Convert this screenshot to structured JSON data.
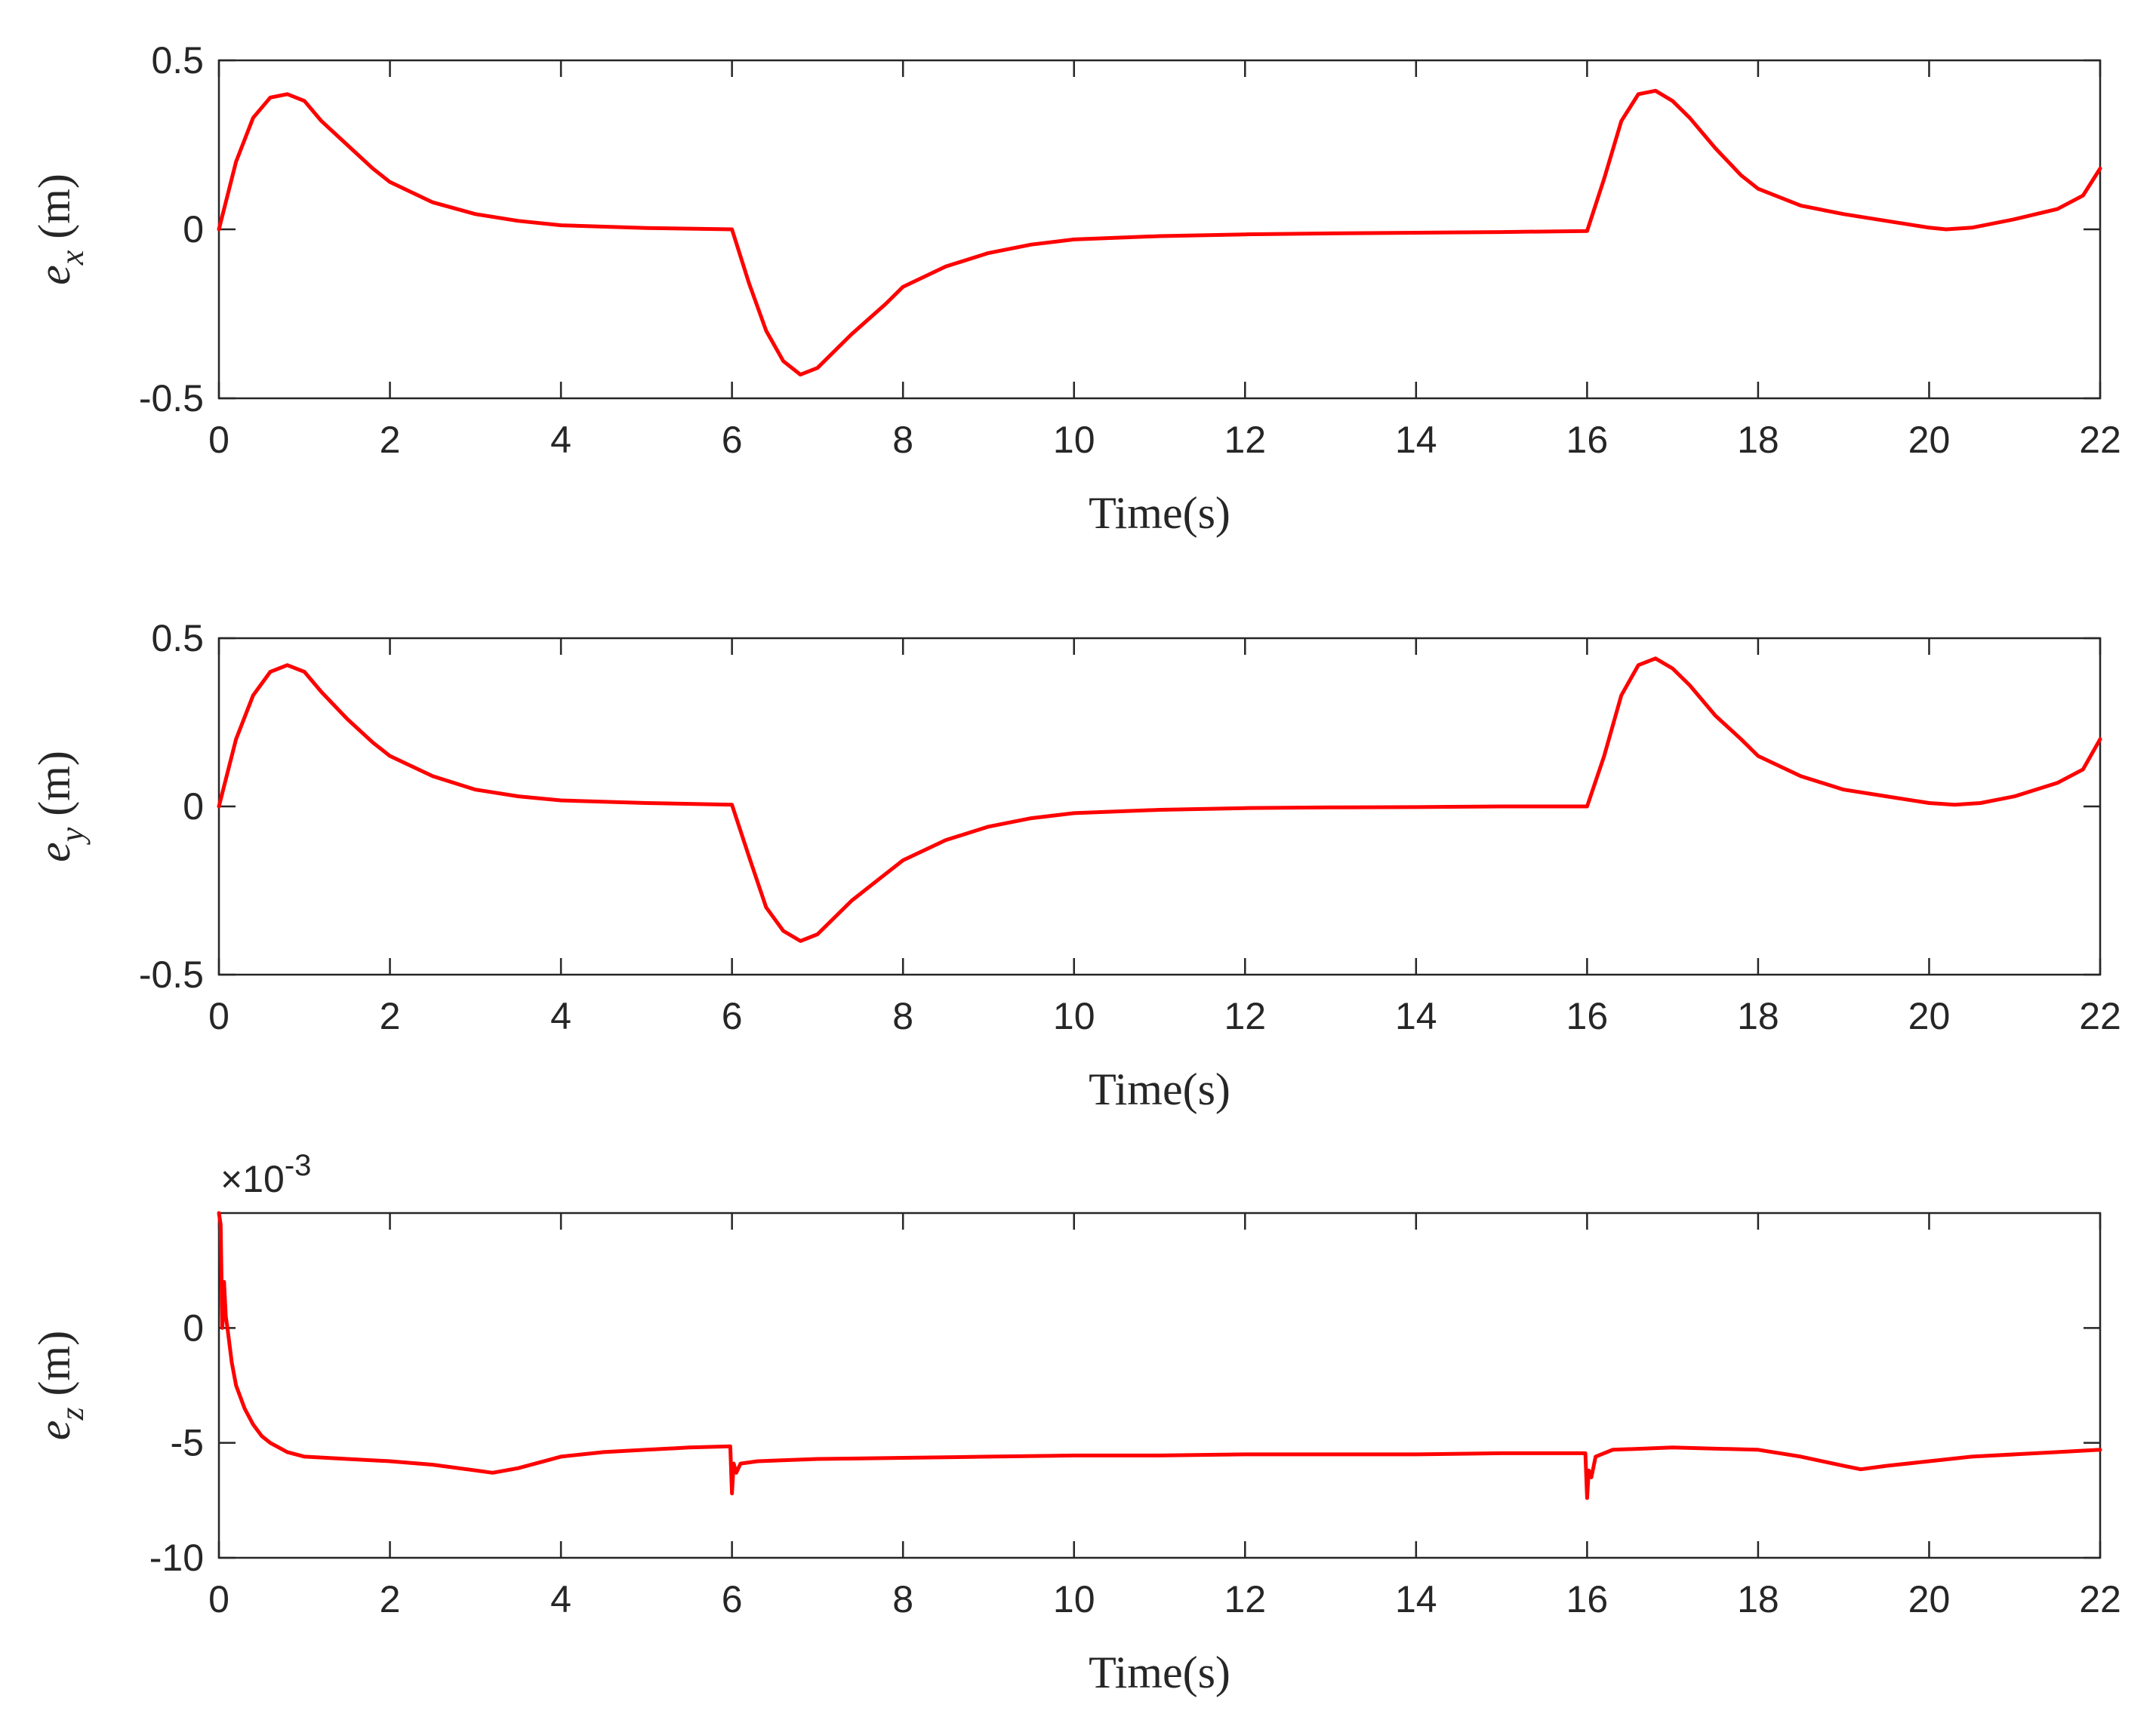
{
  "chart_data": [
    {
      "type": "line",
      "xlabel": "Time(s)",
      "ylabel_var": "e",
      "ylabel_sub": "x",
      "ylabel_unit": " (m)",
      "xlim": [
        0,
        22
      ],
      "ylim": [
        -0.5,
        0.5
      ],
      "xticks": [
        0,
        2,
        4,
        6,
        8,
        10,
        12,
        14,
        16,
        18,
        20,
        22
      ],
      "yticks": [
        -0.5,
        0,
        0.5
      ],
      "ytick_labels": [
        "-0.5",
        "0",
        "0.5"
      ],
      "grid": false,
      "series": [
        {
          "color": "#ff0000",
          "x": [
            0,
            0.2,
            0.4,
            0.6,
            0.8,
            1.0,
            1.2,
            1.5,
            1.8,
            2.0,
            2.5,
            3.0,
            3.5,
            4.0,
            5.0,
            6.0,
            6.2,
            6.4,
            6.6,
            6.8,
            7.0,
            7.4,
            7.8,
            8.0,
            8.5,
            9.0,
            9.5,
            10.0,
            11.0,
            12.0,
            13.0,
            14.0,
            15.0,
            16.0,
            16.2,
            16.4,
            16.6,
            16.8,
            17.0,
            17.2,
            17.5,
            17.8,
            18.0,
            18.5,
            19.0,
            19.5,
            20.0,
            20.2,
            20.5,
            21.0,
            21.5,
            21.8,
            22.0
          ],
          "y": [
            0,
            0.2,
            0.33,
            0.39,
            0.4,
            0.38,
            0.32,
            0.25,
            0.18,
            0.14,
            0.08,
            0.045,
            0.025,
            0.012,
            0.004,
            0.0,
            -0.16,
            -0.3,
            -0.39,
            -0.43,
            -0.41,
            -0.31,
            -0.22,
            -0.17,
            -0.11,
            -0.07,
            -0.045,
            -0.03,
            -0.02,
            -0.015,
            -0.012,
            -0.01,
            -0.008,
            -0.005,
            0.15,
            0.32,
            0.4,
            0.41,
            0.38,
            0.33,
            0.24,
            0.16,
            0.12,
            0.07,
            0.045,
            0.025,
            0.005,
            0.0,
            0.005,
            0.03,
            0.06,
            0.1,
            0.18
          ]
        }
      ]
    },
    {
      "type": "line",
      "xlabel": "Time(s)",
      "ylabel_var": "e",
      "ylabel_sub": "y",
      "ylabel_unit": " (m)",
      "xlim": [
        0,
        22
      ],
      "ylim": [
        -0.5,
        0.5
      ],
      "xticks": [
        0,
        2,
        4,
        6,
        8,
        10,
        12,
        14,
        16,
        18,
        20,
        22
      ],
      "yticks": [
        -0.5,
        0,
        0.5
      ],
      "ytick_labels": [
        "-0.5",
        "0",
        "0.5"
      ],
      "grid": false,
      "series": [
        {
          "color": "#ff0000",
          "x": [
            0,
            0.2,
            0.4,
            0.6,
            0.8,
            1.0,
            1.2,
            1.5,
            1.8,
            2.0,
            2.5,
            3.0,
            3.5,
            4.0,
            5.0,
            6.0,
            6.2,
            6.4,
            6.6,
            6.8,
            7.0,
            7.4,
            7.8,
            8.0,
            8.5,
            9.0,
            9.5,
            10.0,
            11.0,
            12.0,
            13.0,
            14.0,
            15.0,
            16.0,
            16.2,
            16.4,
            16.6,
            16.8,
            17.0,
            17.2,
            17.5,
            17.8,
            18.0,
            18.5,
            19.0,
            19.5,
            20.0,
            20.3,
            20.6,
            21.0,
            21.5,
            21.8,
            22.0
          ],
          "y": [
            0,
            0.2,
            0.33,
            0.4,
            0.42,
            0.4,
            0.34,
            0.26,
            0.19,
            0.15,
            0.09,
            0.05,
            0.03,
            0.018,
            0.01,
            0.005,
            -0.15,
            -0.3,
            -0.37,
            -0.4,
            -0.38,
            -0.28,
            -0.2,
            -0.16,
            -0.1,
            -0.06,
            -0.035,
            -0.02,
            -0.01,
            -0.005,
            -0.003,
            -0.002,
            0.0,
            0.0,
            0.15,
            0.33,
            0.42,
            0.44,
            0.41,
            0.36,
            0.27,
            0.2,
            0.15,
            0.09,
            0.05,
            0.03,
            0.01,
            0.005,
            0.01,
            0.03,
            0.07,
            0.11,
            0.2
          ]
        }
      ]
    },
    {
      "type": "line",
      "xlabel": "Time(s)",
      "ylabel_var": "e",
      "ylabel_sub": "z",
      "ylabel_unit": " (m)",
      "exponent": "×10",
      "exponent_power": "-3",
      "xlim": [
        0,
        22
      ],
      "ylim": [
        -10,
        5
      ],
      "xticks": [
        0,
        2,
        4,
        6,
        8,
        10,
        12,
        14,
        16,
        18,
        20,
        22
      ],
      "yticks": [
        -10,
        -5,
        0
      ],
      "ytick_labels": [
        "-10",
        "-5",
        "0"
      ],
      "grid": false,
      "series": [
        {
          "color": "#ff0000",
          "x": [
            0,
            0.02,
            0.04,
            0.06,
            0.08,
            0.1,
            0.15,
            0.2,
            0.3,
            0.4,
            0.5,
            0.6,
            0.8,
            1.0,
            1.5,
            2.0,
            2.5,
            3.0,
            3.2,
            3.5,
            4.0,
            4.5,
            5.0,
            5.5,
            5.98,
            6.0,
            6.02,
            6.05,
            6.1,
            6.3,
            7.0,
            8.0,
            9.0,
            10.0,
            11.0,
            12.0,
            13.0,
            14.0,
            15.0,
            15.98,
            16.0,
            16.02,
            16.05,
            16.1,
            16.3,
            17.0,
            18.0,
            18.5,
            19.0,
            19.2,
            19.5,
            20.0,
            20.5,
            21.0,
            21.5,
            22.0
          ],
          "y": [
            5,
            4.5,
            0,
            2,
            0.5,
            0,
            -1.5,
            -2.5,
            -3.5,
            -4.2,
            -4.7,
            -5.0,
            -5.4,
            -5.6,
            -5.7,
            -5.8,
            -5.95,
            -6.2,
            -6.3,
            -6.1,
            -5.6,
            -5.4,
            -5.3,
            -5.2,
            -5.15,
            -7.2,
            -5.9,
            -6.3,
            -5.9,
            -5.8,
            -5.7,
            -5.65,
            -5.6,
            -5.55,
            -5.55,
            -5.5,
            -5.5,
            -5.5,
            -5.45,
            -5.45,
            -7.4,
            -6.2,
            -6.5,
            -5.6,
            -5.3,
            -5.2,
            -5.3,
            -5.6,
            -6.0,
            -6.15,
            -6.0,
            -5.8,
            -5.6,
            -5.5,
            -5.4,
            -5.3
          ]
        }
      ]
    }
  ]
}
